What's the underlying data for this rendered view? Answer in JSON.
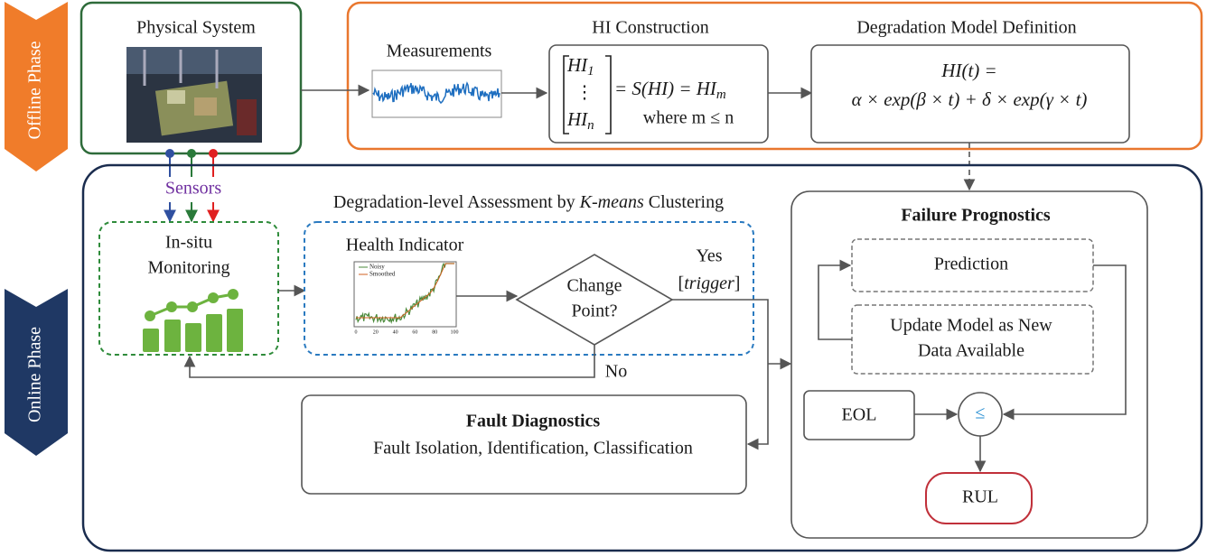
{
  "phases": {
    "offline": "Offline Phase",
    "online": "Online Phase"
  },
  "physical_system": {
    "title": "Physical System"
  },
  "measurements": {
    "title": "Measurements"
  },
  "hi_construction": {
    "title": "HI Construction",
    "matrix": [
      {
        "text": "HI",
        "sub": "1"
      },
      {
        "text": "⋮"
      },
      {
        "text": "HI",
        "sub": "n"
      }
    ],
    "equation": {
      "text": "= S(HI) = HI",
      "sub": "m"
    },
    "condition": "where m ≤ n"
  },
  "degradation_model": {
    "title": "Degradation Model Definition",
    "equation_lines": [
      "HI(t) =",
      "α × exp(β × t) + δ × exp(γ × t)"
    ]
  },
  "sensors": {
    "label": "Sensors"
  },
  "assessment": {
    "title_parts": [
      "Degradation-level Assessment by ",
      "K-means",
      " Clustering"
    ]
  },
  "in_situ": {
    "lines": [
      "In-situ",
      "Monitoring"
    ]
  },
  "health_indicator": {
    "title": "Health Indicator",
    "legend": [
      "Noisy",
      "Smoothed"
    ],
    "xticks": [
      "0",
      "20",
      "40",
      "60",
      "80",
      "100"
    ]
  },
  "change_point": {
    "lines": [
      "Change",
      "Point?"
    ],
    "yes": "Yes",
    "trigger_parts": [
      "[",
      "trigger",
      "]"
    ],
    "no": "No"
  },
  "fault_diagnostics": {
    "title": "Fault Diagnostics",
    "subtitle": "Fault Isolation, Identification, Classification"
  },
  "failure_prognostics": {
    "title": "Failure Prognostics",
    "prediction": "Prediction",
    "update": [
      "Update Model as New",
      "Data Available"
    ],
    "eol": "EOL",
    "comparison": "≤",
    "rul": "RUL"
  }
}
